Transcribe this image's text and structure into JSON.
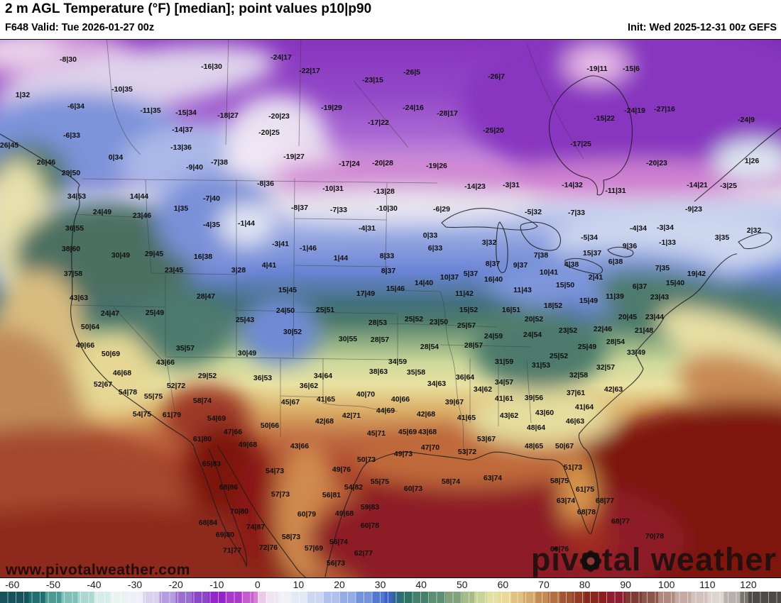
{
  "header": {
    "title": "2 m AGL Temperature (°F) [median]; point values p10|p90",
    "valid": "F648 Valid: Tue 2026-01-27 00z",
    "init": "Init: Wed 2025-12-31 00z GEFS"
  },
  "watermark": {
    "url": "www.pivotalweather.com",
    "brand_left": "piv",
    "brand_right": "tal weather"
  },
  "colorbar": {
    "min": -63,
    "max": 128,
    "ticks": [
      -60,
      -50,
      -40,
      -30,
      -20,
      -10,
      0,
      10,
      20,
      30,
      40,
      50,
      60,
      70,
      80,
      90,
      100,
      110,
      120
    ],
    "stops": [
      [
        -63,
        "#16535c"
      ],
      [
        -56,
        "#1f6e70"
      ],
      [
        -52,
        "#4d9a94"
      ],
      [
        -48,
        "#7fc0b8"
      ],
      [
        -44,
        "#abd9d2"
      ],
      [
        -40,
        "#d5ece8"
      ],
      [
        -36,
        "#e9f4f1"
      ],
      [
        -32,
        "#efeff7"
      ],
      [
        -28,
        "#d9d2ee"
      ],
      [
        -24,
        "#b39ddd"
      ],
      [
        -20,
        "#9a6fd0"
      ],
      [
        -16,
        "#8c46c8"
      ],
      [
        -12,
        "#9326c6"
      ],
      [
        -8,
        "#a93ac9"
      ],
      [
        -4,
        "#c45ecf"
      ],
      [
        -1,
        "#d67fd4"
      ],
      [
        0,
        "#ecc9e8"
      ],
      [
        2,
        "#f2e3f0"
      ],
      [
        5,
        "#f0f0f6"
      ],
      [
        8,
        "#e4e9f6"
      ],
      [
        12,
        "#ccd7f2"
      ],
      [
        16,
        "#b0c2ec"
      ],
      [
        20,
        "#93ace4"
      ],
      [
        24,
        "#7492da"
      ],
      [
        28,
        "#5478d0"
      ],
      [
        31,
        "#3e62c8"
      ],
      [
        33,
        "#2d6a88"
      ],
      [
        35,
        "#2e7268"
      ],
      [
        38,
        "#44806b"
      ],
      [
        42,
        "#5d8f72"
      ],
      [
        46,
        "#81a27c"
      ],
      [
        50,
        "#a8bc8a"
      ],
      [
        53,
        "#c9d299"
      ],
      [
        56,
        "#e3e0a4"
      ],
      [
        59,
        "#e9d897"
      ],
      [
        62,
        "#dfc183"
      ],
      [
        65,
        "#d3a86b"
      ],
      [
        68,
        "#c48c55"
      ],
      [
        71,
        "#b26f44"
      ],
      [
        74,
        "#a05434"
      ],
      [
        77,
        "#923c26"
      ],
      [
        80,
        "#88281a"
      ],
      [
        83,
        "#8c1f20"
      ],
      [
        86,
        "#8e1f33"
      ],
      [
        90,
        "#7e3a33"
      ],
      [
        94,
        "#8a564a"
      ],
      [
        98,
        "#b08a80"
      ],
      [
        102,
        "#c4aaa2"
      ],
      [
        106,
        "#d2c2bc"
      ],
      [
        110,
        "#ddd3cf"
      ],
      [
        114,
        "#b8b0ac"
      ],
      [
        118,
        "#7a746f"
      ],
      [
        120,
        "#4e4a46"
      ],
      [
        128,
        "#4e4a46"
      ]
    ]
  },
  "map": {
    "points": [
      [
        96,
        83,
        "-8|30"
      ],
      [
        396,
        80,
        "-24|17"
      ],
      [
        298,
        93,
        "-16|30"
      ],
      [
        841,
        96,
        "-19|11"
      ],
      [
        889,
        96,
        "-15|6"
      ],
      [
        436,
        99,
        "-22|17"
      ],
      [
        580,
        101,
        "-26|5"
      ],
      [
        699,
        107,
        "-26|7"
      ],
      [
        525,
        112,
        "-23|15"
      ],
      [
        172,
        125,
        "-10|35"
      ],
      [
        32,
        133,
        "1|32"
      ],
      [
        107,
        149,
        "-6|34"
      ],
      [
        467,
        151,
        "-19|29"
      ],
      [
        582,
        151,
        "-24|16"
      ],
      [
        936,
        153,
        "-27|16"
      ],
      [
        894,
        155,
        "-24|19"
      ],
      [
        212,
        155,
        "-11|35"
      ],
      [
        262,
        158,
        "-15|34"
      ],
      [
        630,
        159,
        "-28|17"
      ],
      [
        321,
        162,
        "-18|27"
      ],
      [
        393,
        163,
        "-20|23"
      ],
      [
        851,
        166,
        "-15|22"
      ],
      [
        1051,
        168,
        "-24|9"
      ],
      [
        533,
        172,
        "-17|22"
      ],
      [
        257,
        182,
        "-14|37"
      ],
      [
        695,
        183,
        "-25|20"
      ],
      [
        379,
        186,
        "-20|25"
      ],
      [
        101,
        190,
        "-6|33"
      ],
      [
        818,
        202,
        "-17|25"
      ],
      [
        13,
        204,
        "26|45"
      ],
      [
        255,
        207,
        "-13|36"
      ],
      [
        414,
        220,
        "-19|27"
      ],
      [
        163,
        221,
        "0|34"
      ],
      [
        1059,
        226,
        "1|26"
      ],
      [
        65,
        228,
        "26|46"
      ],
      [
        309,
        228,
        "-7|38"
      ],
      [
        539,
        229,
        "-20|28"
      ],
      [
        925,
        229,
        "-20|23"
      ],
      [
        492,
        230,
        "-17|24"
      ],
      [
        615,
        233,
        "-19|26"
      ],
      [
        274,
        235,
        "-9|40"
      ],
      [
        100,
        243,
        "29|50"
      ],
      [
        374,
        258,
        "-8|36"
      ],
      [
        806,
        260,
        "-14|32"
      ],
      [
        982,
        260,
        "-14|21"
      ],
      [
        720,
        260,
        "-3|31"
      ],
      [
        1026,
        261,
        "-3|25"
      ],
      [
        669,
        262,
        "-14|23"
      ],
      [
        469,
        265,
        "-10|31"
      ],
      [
        867,
        268,
        "-11|31"
      ],
      [
        541,
        269,
        "-13|28"
      ],
      [
        108,
        276,
        "34|53"
      ],
      [
        196,
        276,
        "14|44"
      ],
      [
        298,
        279,
        "-7|40"
      ],
      [
        422,
        292,
        "-8|37"
      ],
      [
        545,
        293,
        "-10|30"
      ],
      [
        255,
        293,
        "1|35"
      ],
      [
        622,
        294,
        "-6|29"
      ],
      [
        977,
        294,
        "-9|23"
      ],
      [
        477,
        295,
        "-7|33"
      ],
      [
        812,
        299,
        "-7|33"
      ],
      [
        751,
        298,
        "-5|32"
      ],
      [
        200,
        303,
        "23|46"
      ],
      [
        144,
        298,
        "24|49"
      ],
      [
        298,
        316,
        "-4|35"
      ],
      [
        347,
        314,
        "-1|44"
      ],
      [
        105,
        321,
        "36|55"
      ],
      [
        517,
        321,
        "-4|31"
      ],
      [
        937,
        320,
        "-3|34"
      ],
      [
        899,
        321,
        "-4|34"
      ],
      [
        1062,
        324,
        "2|32"
      ],
      [
        606,
        331,
        "0|33"
      ],
      [
        830,
        334,
        "-5|34"
      ],
      [
        1017,
        334,
        "3|35"
      ],
      [
        940,
        341,
        "-1|33"
      ],
      [
        689,
        341,
        "3|32"
      ],
      [
        395,
        343,
        "-3|41"
      ],
      [
        887,
        346,
        "9|36"
      ],
      [
        434,
        349,
        "-1|46"
      ],
      [
        613,
        349,
        "6|33"
      ],
      [
        100,
        350,
        "38|60"
      ],
      [
        834,
        356,
        "15|37"
      ],
      [
        217,
        357,
        "29|45"
      ],
      [
        170,
        359,
        "30|49"
      ],
      [
        762,
        359,
        "7|38"
      ],
      [
        545,
        360,
        "8|33"
      ],
      [
        286,
        361,
        "16|38"
      ],
      [
        480,
        363,
        "1|44"
      ],
      [
        867,
        368,
        "6|38"
      ],
      [
        694,
        371,
        "8|37"
      ],
      [
        733,
        373,
        "9|37"
      ],
      [
        379,
        373,
        "4|41"
      ],
      [
        805,
        372,
        "4|38"
      ],
      [
        933,
        377,
        "7|35"
      ],
      [
        245,
        380,
        "23|45"
      ],
      [
        336,
        380,
        "3|28"
      ],
      [
        547,
        381,
        "8|37"
      ],
      [
        773,
        383,
        "10|41"
      ],
      [
        103,
        385,
        "37|58"
      ],
      [
        663,
        385,
        "5|37"
      ],
      [
        981,
        385,
        "19|42"
      ],
      [
        633,
        390,
        "10|37"
      ],
      [
        839,
        390,
        "2|41"
      ],
      [
        695,
        393,
        "16|40"
      ],
      [
        597,
        398,
        "14|40"
      ],
      [
        951,
        398,
        "15|40"
      ],
      [
        796,
        401,
        "15|50"
      ],
      [
        901,
        403,
        "6|37"
      ],
      [
        557,
        406,
        "15|46"
      ],
      [
        405,
        408,
        "15|45"
      ],
      [
        736,
        408,
        "11|43"
      ],
      [
        654,
        413,
        "11|42"
      ],
      [
        515,
        413,
        "17|49"
      ],
      [
        866,
        417,
        "11|39"
      ],
      [
        111,
        419,
        "43|63"
      ],
      [
        290,
        417,
        "28|47"
      ],
      [
        929,
        418,
        "23|43"
      ],
      [
        829,
        423,
        "15|49"
      ],
      [
        779,
        430,
        "18|52"
      ],
      [
        660,
        436,
        "15|52"
      ],
      [
        720,
        436,
        "16|51"
      ],
      [
        402,
        437,
        "24|50"
      ],
      [
        458,
        436,
        "25|51"
      ],
      [
        155,
        441,
        "24|47"
      ],
      [
        218,
        440,
        "25|49"
      ],
      [
        884,
        446,
        "20|45"
      ],
      [
        922,
        446,
        "23|44"
      ],
      [
        583,
        449,
        "25|52"
      ],
      [
        618,
        453,
        "23|50"
      ],
      [
        752,
        449,
        "20|52"
      ],
      [
        345,
        450,
        "25|43"
      ],
      [
        532,
        454,
        "28|53"
      ],
      [
        657,
        458,
        "25|57"
      ],
      [
        127,
        460,
        "50|64"
      ],
      [
        800,
        465,
        "23|52"
      ],
      [
        849,
        463,
        "22|46"
      ],
      [
        907,
        465,
        "21|48"
      ],
      [
        412,
        467,
        "30|52"
      ],
      [
        750,
        471,
        "24|54"
      ],
      [
        695,
        473,
        "24|59"
      ],
      [
        490,
        477,
        "30|55"
      ],
      [
        535,
        478,
        "28|57"
      ],
      [
        120,
        486,
        "49|66"
      ],
      [
        667,
        486,
        "28|57"
      ],
      [
        605,
        488,
        "28|54"
      ],
      [
        827,
        488,
        "25|49"
      ],
      [
        261,
        490,
        "35|57"
      ],
      [
        867,
        481,
        "28|54"
      ],
      [
        896,
        496,
        "33|49"
      ],
      [
        348,
        497,
        "30|49"
      ],
      [
        156,
        498,
        "50|69"
      ],
      [
        787,
        501,
        "25|52"
      ],
      [
        560,
        509,
        "34|59"
      ],
      [
        710,
        509,
        "31|59"
      ],
      [
        233,
        510,
        "43|66"
      ],
      [
        762,
        514,
        "31|53"
      ],
      [
        853,
        517,
        "32|57"
      ],
      [
        533,
        523,
        "38|63"
      ],
      [
        586,
        524,
        "35|58"
      ],
      [
        172,
        525,
        "46|68"
      ],
      [
        815,
        528,
        "32|58"
      ],
      [
        292,
        529,
        "29|52"
      ],
      [
        455,
        529,
        "34|64"
      ],
      [
        370,
        532,
        "36|53"
      ],
      [
        655,
        531,
        "36|64"
      ],
      [
        710,
        538,
        "34|57"
      ],
      [
        615,
        540,
        "34|63"
      ],
      [
        145,
        541,
        "52|67"
      ],
      [
        435,
        543,
        "36|62"
      ],
      [
        248,
        543,
        "52|72"
      ],
      [
        680,
        548,
        "34|62"
      ],
      [
        864,
        548,
        "42|63"
      ],
      [
        180,
        552,
        "54|78"
      ],
      [
        811,
        553,
        "37|61"
      ],
      [
        515,
        555,
        "40|70"
      ],
      [
        216,
        558,
        "55|75"
      ],
      [
        752,
        560,
        "39|56"
      ],
      [
        459,
        562,
        "41|65"
      ],
      [
        564,
        562,
        "40|66"
      ],
      [
        285,
        564,
        "58|74"
      ],
      [
        409,
        566,
        "45|67"
      ],
      [
        640,
        566,
        "39|67"
      ],
      [
        710,
        561,
        "41|61"
      ],
      [
        823,
        573,
        "41|64"
      ],
      [
        543,
        578,
        "44|69"
      ],
      [
        767,
        581,
        "43|60"
      ],
      [
        200,
        583,
        "54|75"
      ],
      [
        242,
        584,
        "61|79"
      ],
      [
        600,
        583,
        "42|68"
      ],
      [
        495,
        585,
        "42|71"
      ],
      [
        717,
        585,
        "43|62"
      ],
      [
        305,
        589,
        "54|69"
      ],
      [
        657,
        588,
        "41|65"
      ],
      [
        457,
        593,
        "42|68"
      ],
      [
        810,
        593,
        "46|63"
      ],
      [
        380,
        599,
        "50|66"
      ],
      [
        755,
        602,
        "48|64"
      ],
      [
        328,
        608,
        "47|66"
      ],
      [
        574,
        608,
        "45|69"
      ],
      [
        602,
        608,
        "43|68"
      ],
      [
        530,
        610,
        "45|71"
      ],
      [
        685,
        618,
        "53|67"
      ],
      [
        285,
        618,
        "61|80"
      ],
      [
        349,
        626,
        "49|68"
      ],
      [
        422,
        628,
        "43|66"
      ],
      [
        752,
        628,
        "48|65"
      ],
      [
        795,
        628,
        "50|67"
      ],
      [
        606,
        630,
        "47|70"
      ],
      [
        658,
        636,
        "53|72"
      ],
      [
        568,
        639,
        "49|73"
      ],
      [
        516,
        647,
        "50|73"
      ],
      [
        298,
        653,
        "65|83"
      ],
      [
        807,
        658,
        "51|73"
      ],
      [
        481,
        661,
        "49|76"
      ],
      [
        387,
        663,
        "54|73"
      ],
      [
        694,
        673,
        "63|74"
      ],
      [
        535,
        678,
        "55|75"
      ],
      [
        635,
        678,
        "58|74"
      ],
      [
        788,
        677,
        "58|75"
      ],
      [
        322,
        686,
        "68|86"
      ],
      [
        498,
        686,
        "54|82"
      ],
      [
        582,
        688,
        "60|73"
      ],
      [
        824,
        689,
        "61|75"
      ],
      [
        395,
        696,
        "57|73"
      ],
      [
        467,
        697,
        "56|81"
      ],
      [
        797,
        705,
        "63|74"
      ],
      [
        852,
        705,
        "68|77"
      ],
      [
        521,
        714,
        "59|83"
      ],
      [
        337,
        720,
        "70|80"
      ],
      [
        826,
        721,
        "68|78"
      ],
      [
        432,
        724,
        "60|79"
      ],
      [
        485,
        723,
        "49|68"
      ],
      [
        874,
        734,
        "68|77"
      ],
      [
        293,
        736,
        "68|84"
      ],
      [
        521,
        740,
        "60|78"
      ],
      [
        360,
        742,
        "74|87"
      ],
      [
        317,
        753,
        "69|80"
      ],
      [
        410,
        756,
        "58|73"
      ],
      [
        922,
        755,
        "70|78"
      ],
      [
        477,
        763,
        "56|74"
      ],
      [
        378,
        771,
        "72|76"
      ],
      [
        442,
        772,
        "57|69"
      ],
      [
        327,
        775,
        "71|77"
      ],
      [
        788,
        773,
        "66|76"
      ],
      [
        512,
        779,
        "62|77"
      ],
      [
        473,
        793,
        "56|73"
      ]
    ]
  }
}
